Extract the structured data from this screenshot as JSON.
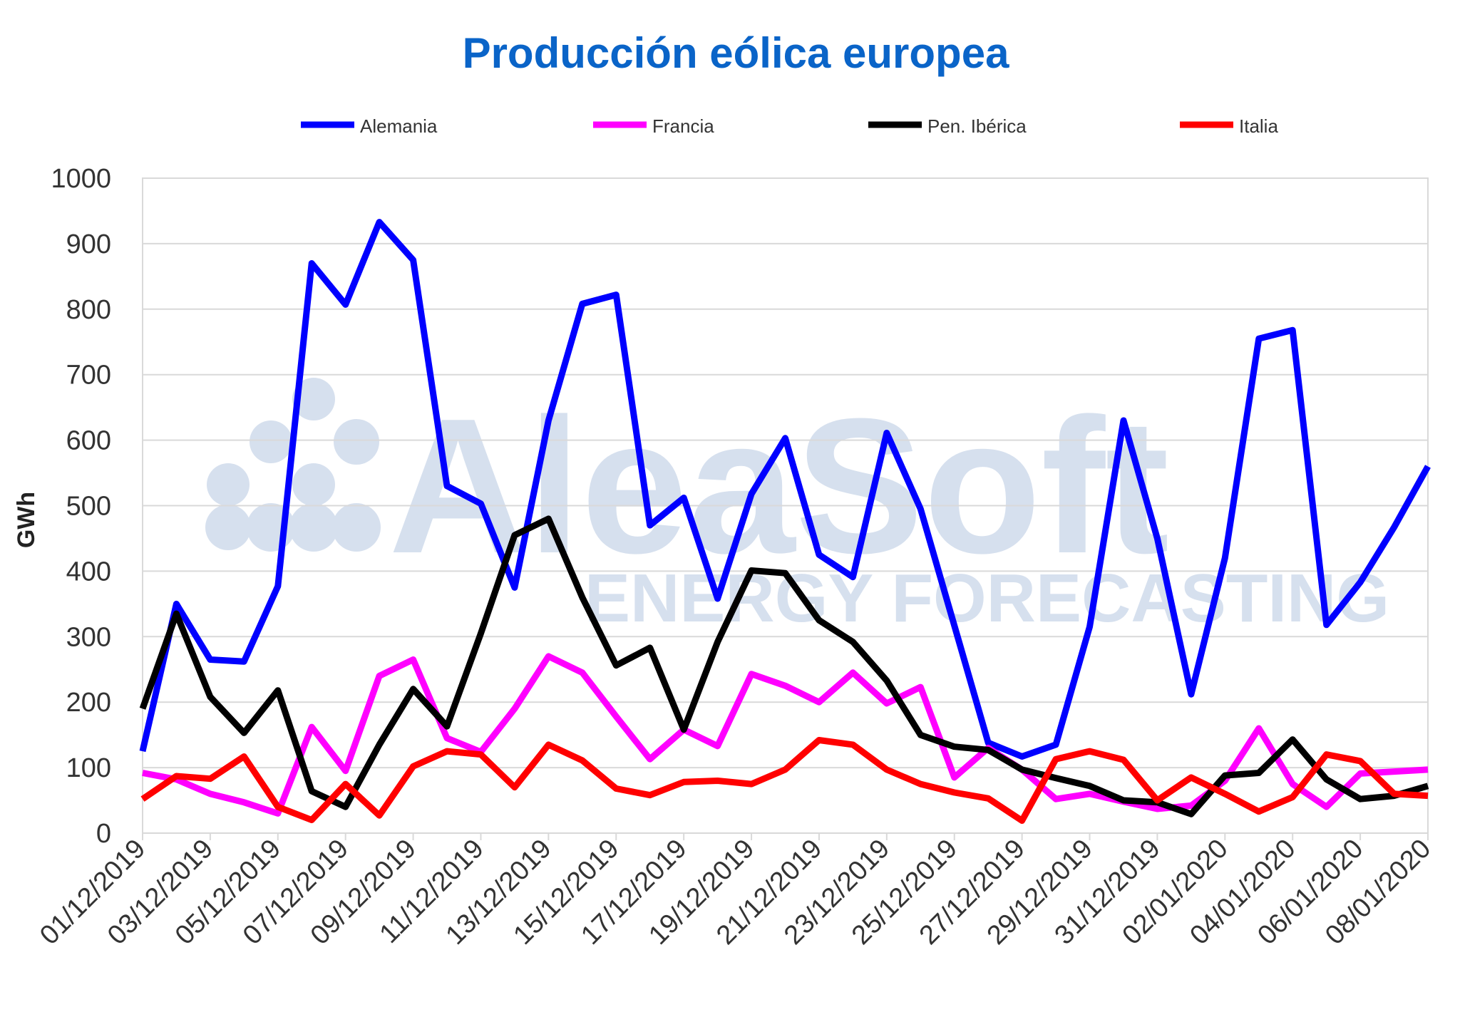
{
  "chart_data": {
    "type": "line",
    "title": "Producción eólica europea",
    "ylabel": "GWh",
    "xlabel": "",
    "ylim": [
      0,
      1000
    ],
    "yticks": [
      0,
      100,
      200,
      300,
      400,
      500,
      600,
      700,
      800,
      900,
      1000
    ],
    "grid": true,
    "legend_position": "top",
    "x": [
      "01/12/2019",
      "02/12/2019",
      "03/12/2019",
      "04/12/2019",
      "05/12/2019",
      "06/12/2019",
      "07/12/2019",
      "08/12/2019",
      "09/12/2019",
      "10/12/2019",
      "11/12/2019",
      "12/12/2019",
      "13/12/2019",
      "14/12/2019",
      "15/12/2019",
      "16/12/2019",
      "17/12/2019",
      "18/12/2019",
      "19/12/2019",
      "20/12/2019",
      "21/12/2019",
      "22/12/2019",
      "23/12/2019",
      "24/12/2019",
      "25/12/2019",
      "26/12/2019",
      "27/12/2019",
      "28/12/2019",
      "29/12/2019",
      "30/12/2019",
      "31/12/2019",
      "01/01/2020",
      "02/01/2020",
      "03/01/2020",
      "04/01/2020",
      "05/01/2020",
      "06/01/2020",
      "07/01/2020",
      "08/01/2020"
    ],
    "x_tick_labels": [
      "01/12/2019",
      "03/12/2019",
      "05/12/2019",
      "07/12/2019",
      "09/12/2019",
      "11/12/2019",
      "13/12/2019",
      "15/12/2019",
      "17/12/2019",
      "19/12/2019",
      "21/12/2019",
      "23/12/2019",
      "25/12/2019",
      "27/12/2019",
      "29/12/2019",
      "31/12/2019",
      "02/01/2020",
      "04/01/2020",
      "06/01/2020",
      "08/01/2020"
    ],
    "series": [
      {
        "name": "Alemania",
        "color": "#0000ff",
        "values": [
          125,
          350,
          265,
          262,
          377,
          870,
          807,
          933,
          875,
          530,
          503,
          375,
          630,
          808,
          822,
          470,
          512,
          358,
          518,
          603,
          425,
          391,
          611,
          495,
          317,
          138,
          117,
          135,
          315,
          630,
          450,
          212,
          420,
          755,
          768,
          318,
          383,
          467,
          560
        ]
      },
      {
        "name": "Francia",
        "color": "#ff00ff",
        "values": [
          92,
          82,
          60,
          47,
          30,
          162,
          95,
          240,
          265,
          145,
          124,
          190,
          270,
          245,
          178,
          113,
          158,
          133,
          243,
          225,
          200,
          245,
          198,
          223,
          85,
          130,
          97,
          52,
          60,
          48,
          37,
          42,
          80,
          160,
          75,
          40,
          91,
          94,
          97
        ]
      },
      {
        "name": "Pen. Ibérica",
        "color": "#000000",
        "values": [
          190,
          335,
          208,
          153,
          218,
          64,
          40,
          135,
          220,
          163,
          305,
          455,
          480,
          360,
          256,
          283,
          158,
          292,
          401,
          397,
          325,
          292,
          233,
          150,
          132,
          127,
          97,
          84,
          72,
          50,
          47,
          29,
          88,
          92,
          143,
          82,
          52,
          57,
          72
        ]
      },
      {
        "name": "Italia",
        "color": "#ff0000",
        "values": [
          52,
          87,
          83,
          117,
          40,
          20,
          75,
          27,
          102,
          125,
          120,
          70,
          135,
          111,
          68,
          58,
          78,
          80,
          75,
          97,
          142,
          135,
          97,
          75,
          62,
          53,
          19,
          113,
          125,
          112,
          50,
          85,
          60,
          33,
          55,
          120,
          110,
          60,
          57
        ]
      }
    ]
  },
  "watermark": {
    "brand": "AleaSoft",
    "tagline": "ENERGY FORECASTING",
    "color": "#d6e0ee"
  }
}
